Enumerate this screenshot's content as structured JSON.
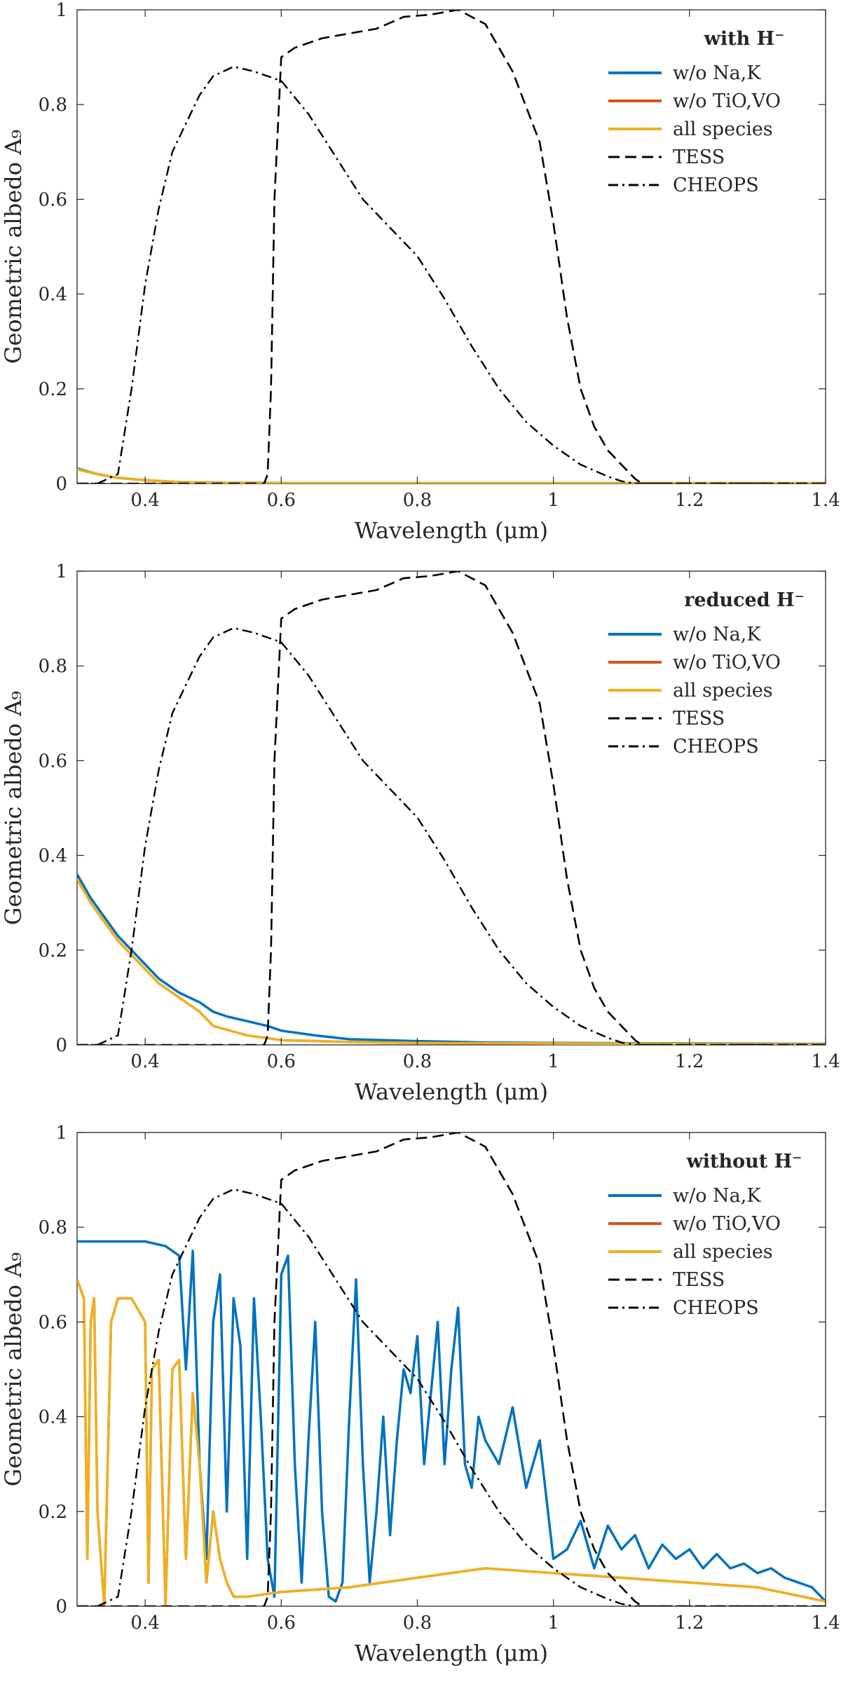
{
  "chart_data": [
    {
      "type": "line",
      "panel": "top",
      "legend_title": "with H⁻",
      "xlabel": "Wavelength (μm)",
      "ylabel": "Geometric albedo A₉",
      "xlim": [
        0.3,
        1.4
      ],
      "ylim": [
        0,
        1
      ],
      "xticks": [
        "0.4",
        "0.6",
        "0.8",
        "1",
        "1.2",
        "1.4"
      ],
      "yticks": [
        "0",
        "0.2",
        "0.4",
        "0.6",
        "0.8",
        "1"
      ],
      "grid": false,
      "legend_position": "top-right",
      "series": [
        {
          "name": "w/o Na,K",
          "color": "#0072bd",
          "style": "solid",
          "x": [
            0.3,
            0.33,
            0.36,
            0.4,
            0.45,
            0.5,
            0.6,
            0.8,
            1.0,
            1.2,
            1.4
          ],
          "y": [
            0.032,
            0.02,
            0.012,
            0.007,
            0.003,
            0.002,
            0.001,
            0.001,
            0.001,
            0.001,
            0.001
          ]
        },
        {
          "name": "w/o TiO,VO",
          "color": "#d95319",
          "style": "solid",
          "x": [
            0.3,
            0.33,
            0.36,
            0.4,
            0.45,
            0.5,
            0.6,
            0.8,
            1.0,
            1.2,
            1.4
          ],
          "y": [
            0.03,
            0.02,
            0.012,
            0.007,
            0.003,
            0.002,
            0.001,
            0.001,
            0.001,
            0.001,
            0.001
          ]
        },
        {
          "name": "all species",
          "color": "#edb120",
          "style": "solid",
          "x": [
            0.3,
            0.33,
            0.36,
            0.4,
            0.45,
            0.5,
            0.6,
            0.8,
            1.0,
            1.2,
            1.4
          ],
          "y": [
            0.03,
            0.02,
            0.012,
            0.007,
            0.003,
            0.002,
            0.001,
            0.001,
            0.001,
            0.001,
            0.001
          ]
        },
        {
          "name": "TESS",
          "color": "#000000",
          "style": "dashed",
          "x": [
            0.3,
            0.575,
            0.58,
            0.585,
            0.59,
            0.6,
            0.62,
            0.66,
            0.7,
            0.74,
            0.78,
            0.82,
            0.86,
            0.9,
            0.94,
            0.98,
            1.0,
            1.02,
            1.04,
            1.06,
            1.08,
            1.1,
            1.12,
            1.13,
            1.4
          ],
          "y": [
            0,
            0,
            0.02,
            0.2,
            0.6,
            0.9,
            0.92,
            0.94,
            0.95,
            0.96,
            0.985,
            0.99,
            1.0,
            0.97,
            0.87,
            0.72,
            0.55,
            0.35,
            0.2,
            0.12,
            0.07,
            0.04,
            0.01,
            0,
            0
          ]
        },
        {
          "name": "CHEOPS",
          "color": "#000000",
          "style": "dashdot",
          "x": [
            0.3,
            0.33,
            0.36,
            0.38,
            0.4,
            0.42,
            0.44,
            0.46,
            0.48,
            0.5,
            0.53,
            0.56,
            0.6,
            0.64,
            0.68,
            0.72,
            0.76,
            0.8,
            0.84,
            0.88,
            0.92,
            0.96,
            1.0,
            1.04,
            1.08,
            1.1,
            1.12,
            1.4
          ],
          "y": [
            0,
            0,
            0.02,
            0.2,
            0.42,
            0.58,
            0.7,
            0.76,
            0.82,
            0.86,
            0.88,
            0.87,
            0.85,
            0.78,
            0.69,
            0.6,
            0.54,
            0.48,
            0.39,
            0.29,
            0.2,
            0.13,
            0.08,
            0.04,
            0.015,
            0.005,
            0,
            0
          ]
        }
      ]
    },
    {
      "type": "line",
      "panel": "middle",
      "legend_title": "reduced H⁻",
      "xlabel": "Wavelength (μm)",
      "ylabel": "Geometric albedo A₉",
      "xlim": [
        0.3,
        1.4
      ],
      "ylim": [
        0,
        1
      ],
      "xticks": [
        "0.4",
        "0.6",
        "0.8",
        "1",
        "1.2",
        "1.4"
      ],
      "yticks": [
        "0",
        "0.2",
        "0.4",
        "0.6",
        "0.8",
        "1"
      ],
      "grid": false,
      "legend_position": "top-right",
      "series": [
        {
          "name": "w/o Na,K",
          "color": "#0072bd",
          "style": "solid",
          "x": [
            0.3,
            0.32,
            0.34,
            0.36,
            0.38,
            0.4,
            0.42,
            0.45,
            0.48,
            0.5,
            0.52,
            0.55,
            0.58,
            0.6,
            0.65,
            0.7,
            0.8,
            0.9,
            1.0,
            1.2,
            1.4
          ],
          "y": [
            0.36,
            0.31,
            0.27,
            0.23,
            0.2,
            0.17,
            0.14,
            0.11,
            0.09,
            0.07,
            0.06,
            0.05,
            0.04,
            0.03,
            0.02,
            0.012,
            0.008,
            0.005,
            0.004,
            0.003,
            0.002
          ]
        },
        {
          "name": "w/o TiO,VO",
          "color": "#d95319",
          "style": "solid",
          "x": [
            0.3,
            0.32,
            0.34,
            0.36,
            0.38,
            0.4,
            0.42,
            0.45,
            0.48,
            0.5,
            0.55,
            0.6,
            0.7,
            0.8,
            1.0,
            1.2,
            1.4
          ],
          "y": [
            0.35,
            0.3,
            0.26,
            0.22,
            0.19,
            0.16,
            0.13,
            0.1,
            0.07,
            0.04,
            0.02,
            0.01,
            0.006,
            0.004,
            0.003,
            0.002,
            0.001
          ]
        },
        {
          "name": "all species",
          "color": "#edb120",
          "style": "solid",
          "x": [
            0.3,
            0.32,
            0.34,
            0.36,
            0.38,
            0.4,
            0.42,
            0.45,
            0.48,
            0.5,
            0.55,
            0.6,
            0.7,
            0.8,
            1.0,
            1.2,
            1.4
          ],
          "y": [
            0.35,
            0.3,
            0.26,
            0.22,
            0.19,
            0.16,
            0.13,
            0.1,
            0.07,
            0.04,
            0.02,
            0.01,
            0.006,
            0.004,
            0.003,
            0.002,
            0.001
          ]
        },
        {
          "name": "TESS",
          "color": "#000000",
          "style": "dashed",
          "x": [
            0.3,
            0.575,
            0.58,
            0.585,
            0.59,
            0.6,
            0.62,
            0.66,
            0.7,
            0.74,
            0.78,
            0.82,
            0.86,
            0.9,
            0.94,
            0.98,
            1.0,
            1.02,
            1.04,
            1.06,
            1.08,
            1.1,
            1.12,
            1.13,
            1.4
          ],
          "y": [
            0,
            0,
            0.02,
            0.2,
            0.6,
            0.9,
            0.92,
            0.94,
            0.95,
            0.96,
            0.985,
            0.99,
            1.0,
            0.97,
            0.87,
            0.72,
            0.55,
            0.35,
            0.2,
            0.12,
            0.07,
            0.04,
            0.01,
            0,
            0
          ]
        },
        {
          "name": "CHEOPS",
          "color": "#000000",
          "style": "dashdot",
          "x": [
            0.3,
            0.33,
            0.36,
            0.38,
            0.4,
            0.42,
            0.44,
            0.46,
            0.48,
            0.5,
            0.53,
            0.56,
            0.6,
            0.64,
            0.68,
            0.72,
            0.76,
            0.8,
            0.84,
            0.88,
            0.92,
            0.96,
            1.0,
            1.04,
            1.08,
            1.1,
            1.12,
            1.4
          ],
          "y": [
            0,
            0,
            0.02,
            0.2,
            0.42,
            0.58,
            0.7,
            0.76,
            0.82,
            0.86,
            0.88,
            0.87,
            0.85,
            0.78,
            0.69,
            0.6,
            0.54,
            0.48,
            0.39,
            0.29,
            0.2,
            0.13,
            0.08,
            0.04,
            0.015,
            0.005,
            0,
            0
          ]
        }
      ]
    },
    {
      "type": "line",
      "panel": "bottom",
      "legend_title": "without H⁻",
      "xlabel": "Wavelength (μm)",
      "ylabel": "Geometric albedo A₉",
      "xlim": [
        0.3,
        1.4
      ],
      "ylim": [
        0,
        1
      ],
      "xticks": [
        "0.4",
        "0.6",
        "0.8",
        "1",
        "1.2",
        "1.4"
      ],
      "yticks": [
        "0",
        "0.2",
        "0.4",
        "0.6",
        "0.8",
        "1"
      ],
      "grid": false,
      "legend_position": "top-right",
      "series": [
        {
          "name": "w/o Na,K",
          "color": "#0072bd",
          "style": "solid",
          "x": [
            0.3,
            0.4,
            0.43,
            0.45,
            0.46,
            0.47,
            0.48,
            0.49,
            0.5,
            0.51,
            0.52,
            0.53,
            0.54,
            0.55,
            0.56,
            0.57,
            0.58,
            0.59,
            0.6,
            0.61,
            0.62,
            0.63,
            0.64,
            0.65,
            0.66,
            0.67,
            0.68,
            0.69,
            0.7,
            0.71,
            0.72,
            0.73,
            0.74,
            0.75,
            0.76,
            0.77,
            0.78,
            0.79,
            0.8,
            0.81,
            0.82,
            0.83,
            0.84,
            0.85,
            0.86,
            0.87,
            0.88,
            0.89,
            0.9,
            0.92,
            0.94,
            0.96,
            0.98,
            1.0,
            1.02,
            1.04,
            1.06,
            1.08,
            1.1,
            1.12,
            1.14,
            1.16,
            1.18,
            1.2,
            1.22,
            1.24,
            1.26,
            1.28,
            1.3,
            1.32,
            1.34,
            1.36,
            1.38,
            1.4
          ],
          "y": [
            0.77,
            0.77,
            0.76,
            0.74,
            0.5,
            0.75,
            0.3,
            0.1,
            0.6,
            0.7,
            0.2,
            0.65,
            0.55,
            0.1,
            0.65,
            0.4,
            0.1,
            0.02,
            0.7,
            0.74,
            0.3,
            0.05,
            0.35,
            0.6,
            0.2,
            0.02,
            0.01,
            0.05,
            0.4,
            0.69,
            0.3,
            0.05,
            0.2,
            0.4,
            0.15,
            0.35,
            0.5,
            0.45,
            0.57,
            0.3,
            0.45,
            0.6,
            0.3,
            0.5,
            0.63,
            0.3,
            0.25,
            0.4,
            0.35,
            0.3,
            0.42,
            0.25,
            0.35,
            0.1,
            0.12,
            0.18,
            0.08,
            0.17,
            0.12,
            0.15,
            0.08,
            0.13,
            0.1,
            0.12,
            0.08,
            0.11,
            0.08,
            0.09,
            0.07,
            0.08,
            0.06,
            0.05,
            0.04,
            0.01
          ]
        },
        {
          "name": "w/o TiO,VO",
          "color": "#d95319",
          "style": "solid",
          "x": [
            0.3,
            0.31,
            0.315,
            0.32,
            0.325,
            0.33,
            0.34,
            0.35,
            0.36,
            0.38,
            0.4,
            0.405,
            0.41,
            0.42,
            0.43,
            0.44,
            0.45,
            0.46,
            0.47,
            0.48,
            0.49,
            0.5,
            0.51,
            0.52,
            0.53,
            0.55,
            0.6,
            0.7,
            0.8,
            0.9,
            1.0,
            1.1,
            1.2,
            1.3,
            1.4
          ],
          "y": [
            0.69,
            0.65,
            0.1,
            0.6,
            0.65,
            0.2,
            0.0,
            0.6,
            0.65,
            0.65,
            0.6,
            0.05,
            0.5,
            0.52,
            0.0,
            0.5,
            0.52,
            0.1,
            0.45,
            0.3,
            0.05,
            0.2,
            0.1,
            0.05,
            0.02,
            0.02,
            0.03,
            0.04,
            0.06,
            0.08,
            0.07,
            0.06,
            0.05,
            0.04,
            0.01
          ]
        },
        {
          "name": "all species",
          "color": "#edb120",
          "style": "solid",
          "x": [
            0.3,
            0.31,
            0.315,
            0.32,
            0.325,
            0.33,
            0.34,
            0.35,
            0.36,
            0.38,
            0.4,
            0.405,
            0.41,
            0.42,
            0.43,
            0.44,
            0.45,
            0.46,
            0.47,
            0.48,
            0.49,
            0.5,
            0.51,
            0.52,
            0.53,
            0.55,
            0.6,
            0.7,
            0.8,
            0.9,
            1.0,
            1.1,
            1.2,
            1.3,
            1.4
          ],
          "y": [
            0.69,
            0.65,
            0.1,
            0.6,
            0.65,
            0.2,
            0.0,
            0.6,
            0.65,
            0.65,
            0.6,
            0.05,
            0.5,
            0.52,
            0.0,
            0.5,
            0.52,
            0.1,
            0.45,
            0.3,
            0.05,
            0.2,
            0.1,
            0.05,
            0.02,
            0.02,
            0.03,
            0.04,
            0.06,
            0.08,
            0.07,
            0.06,
            0.05,
            0.04,
            0.01
          ]
        },
        {
          "name": "TESS",
          "color": "#000000",
          "style": "dashed",
          "x": [
            0.3,
            0.575,
            0.58,
            0.585,
            0.59,
            0.6,
            0.62,
            0.66,
            0.7,
            0.74,
            0.78,
            0.82,
            0.86,
            0.9,
            0.94,
            0.98,
            1.0,
            1.02,
            1.04,
            1.06,
            1.08,
            1.1,
            1.12,
            1.13,
            1.4
          ],
          "y": [
            0,
            0,
            0.02,
            0.2,
            0.6,
            0.9,
            0.92,
            0.94,
            0.95,
            0.96,
            0.985,
            0.99,
            1.0,
            0.97,
            0.87,
            0.72,
            0.55,
            0.35,
            0.2,
            0.12,
            0.07,
            0.04,
            0.01,
            0,
            0
          ]
        },
        {
          "name": "CHEOPS",
          "color": "#000000",
          "style": "dashdot",
          "x": [
            0.3,
            0.33,
            0.36,
            0.38,
            0.4,
            0.42,
            0.44,
            0.46,
            0.48,
            0.5,
            0.53,
            0.56,
            0.6,
            0.64,
            0.68,
            0.72,
            0.76,
            0.8,
            0.84,
            0.88,
            0.92,
            0.96,
            1.0,
            1.04,
            1.08,
            1.1,
            1.12,
            1.4
          ],
          "y": [
            0,
            0,
            0.02,
            0.2,
            0.42,
            0.58,
            0.7,
            0.76,
            0.82,
            0.86,
            0.88,
            0.87,
            0.85,
            0.78,
            0.69,
            0.6,
            0.54,
            0.48,
            0.39,
            0.29,
            0.2,
            0.13,
            0.08,
            0.04,
            0.015,
            0.005,
            0,
            0
          ]
        }
      ]
    }
  ]
}
